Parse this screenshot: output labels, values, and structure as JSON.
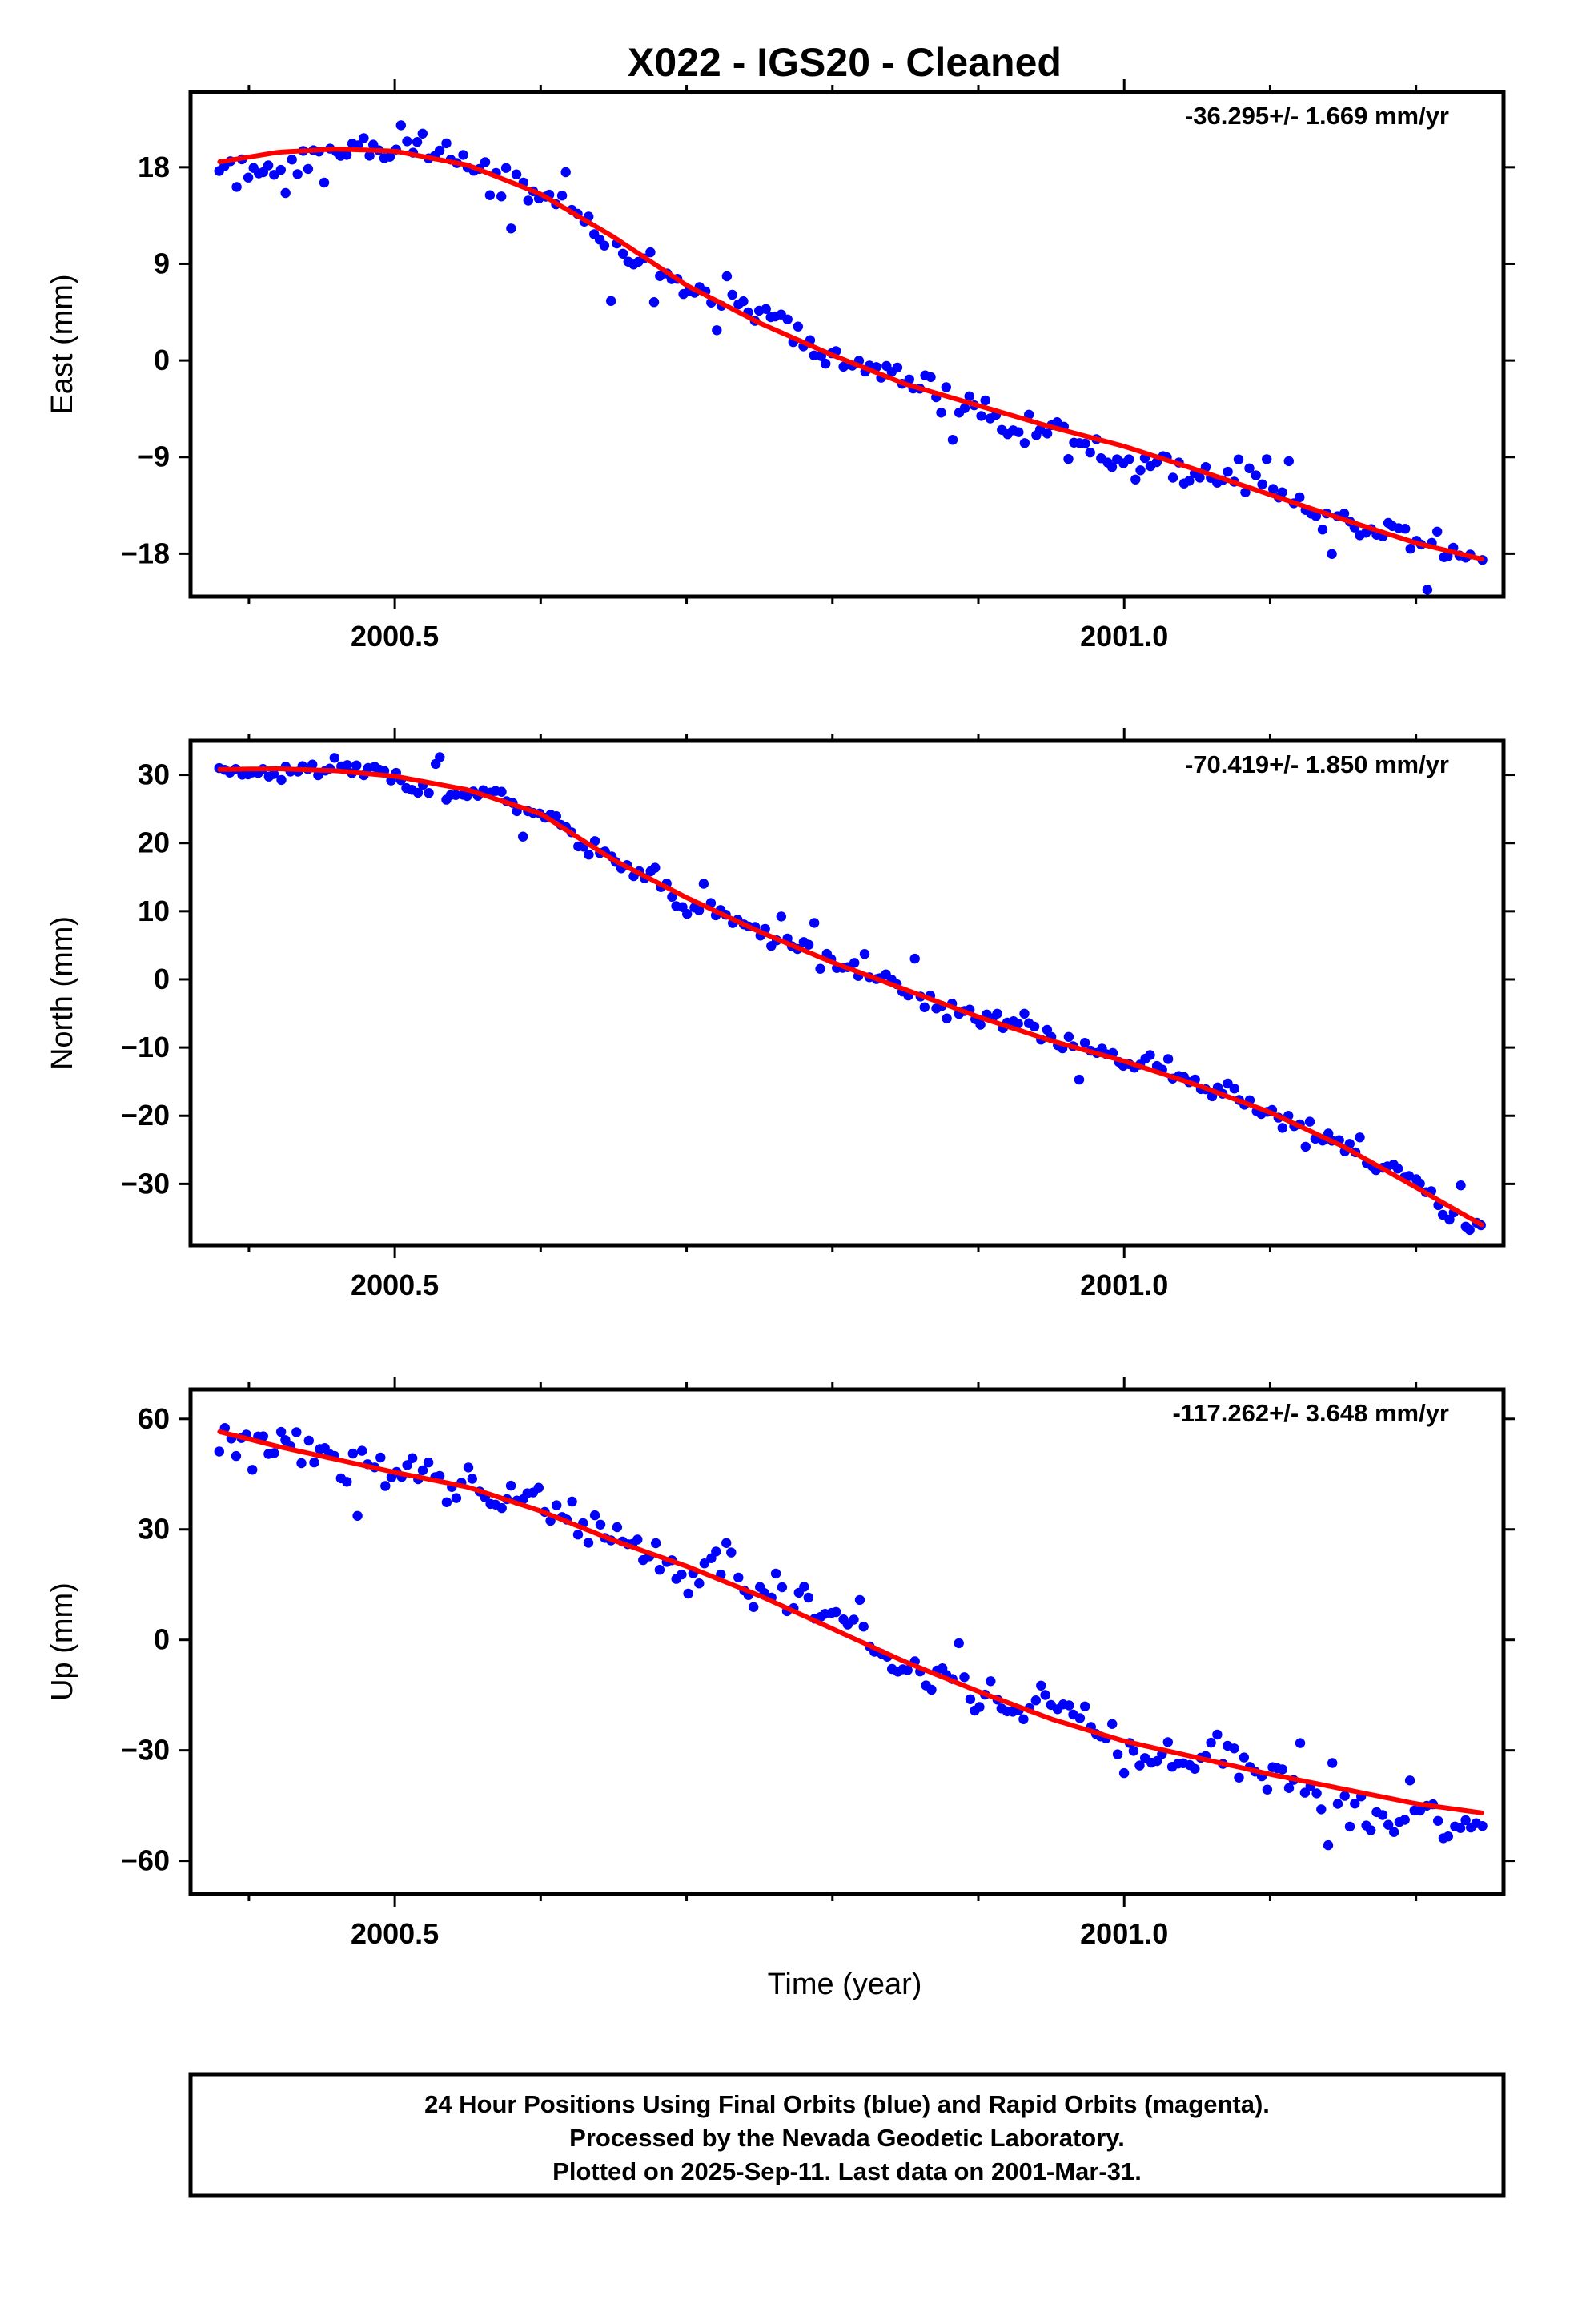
{
  "title": "X022  - IGS20 - Cleaned",
  "xlabel": "Time (year)",
  "footer": {
    "lines": [
      "24 Hour Positions Using Final Orbits (blue) and Rapid Orbits (magenta).",
      "Processed by the Nevada Geodetic Laboratory.",
      "Plotted on 2025-Sep-11. Last data on 2001-Mar-31."
    ]
  },
  "colors": {
    "data": "#0000ff",
    "fit": "#ff0000",
    "frame": "#000000"
  },
  "chart_data": [
    {
      "type": "scatter",
      "ylabel": "East (mm)",
      "rate_label": "-36.295+/- 1.669 mm/yr",
      "xlim": [
        2000.36,
        2001.26
      ],
      "ylim": [
        -22,
        25
      ],
      "x_ticks": [
        2000.5,
        2001.0
      ],
      "x_tick_labels": [
        "2000.5",
        "2001.0"
      ],
      "x_minor_ticks": [
        2000.4,
        2000.6,
        2000.7,
        2000.8,
        2000.9,
        2001.1,
        2001.2
      ],
      "y_ticks": [
        18,
        9,
        0,
        -9,
        -18
      ],
      "y_tick_labels": [
        "18",
        "9",
        "0",
        "−9",
        "−18"
      ],
      "fit": {
        "x": [
          2000.38,
          2000.42,
          2000.46,
          2000.5,
          2000.55,
          2000.6,
          2000.65,
          2000.7,
          2000.75,
          2000.8,
          2000.85,
          2000.9,
          2000.95,
          2001.0,
          2001.05,
          2001.1,
          2001.15,
          2001.2,
          2001.245
        ],
        "y": [
          18.5,
          19.4,
          19.7,
          19.5,
          18.2,
          15.5,
          11.5,
          7.0,
          3.5,
          0.5,
          -2.2,
          -4.2,
          -6.2,
          -8.0,
          -10.2,
          -12.5,
          -14.8,
          -17.0,
          -18.5
        ]
      },
      "seed": 11,
      "points": {
        "n": 230,
        "noise": 1.4,
        "outliers": 12,
        "outlier_mag": 3.2
      }
    },
    {
      "type": "scatter",
      "ylabel": "North (mm)",
      "rate_label": "-70.419+/- 1.850 mm/yr",
      "xlim": [
        2000.36,
        2001.26
      ],
      "ylim": [
        -39,
        35
      ],
      "x_ticks": [
        2000.5,
        2001.0
      ],
      "x_tick_labels": [
        "2000.5",
        "2001.0"
      ],
      "x_minor_ticks": [
        2000.4,
        2000.6,
        2000.7,
        2000.8,
        2000.9,
        2001.1,
        2001.2
      ],
      "y_ticks": [
        30,
        20,
        10,
        0,
        -10,
        -20,
        -30
      ],
      "y_tick_labels": [
        "30",
        "20",
        "10",
        "0",
        "−10",
        "−20",
        "−30"
      ],
      "fit": {
        "x": [
          2000.38,
          2000.42,
          2000.46,
          2000.5,
          2000.55,
          2000.6,
          2000.65,
          2000.7,
          2000.75,
          2000.8,
          2000.85,
          2000.9,
          2000.95,
          2001.0,
          2001.05,
          2001.1,
          2001.15,
          2001.2,
          2001.245
        ],
        "y": [
          30.8,
          30.9,
          30.6,
          29.8,
          27.8,
          24.3,
          17.5,
          12.0,
          7.0,
          2.5,
          -1.5,
          -5.5,
          -9.0,
          -12.0,
          -15.5,
          -19.5,
          -24.5,
          -30.5,
          -36.0
        ]
      },
      "seed": 23,
      "points": {
        "n": 230,
        "noise": 1.3,
        "outliers": 10,
        "outlier_mag": 3.5
      }
    },
    {
      "type": "scatter",
      "ylabel": "Up (mm)",
      "rate_label": "-117.262+/- 3.648 mm/yr",
      "xlim": [
        2000.36,
        2001.26
      ],
      "ylim": [
        -69,
        68
      ],
      "x_ticks": [
        2000.5,
        2001.0
      ],
      "x_tick_labels": [
        "2000.5",
        "2001.0"
      ],
      "x_minor_ticks": [
        2000.4,
        2000.6,
        2000.7,
        2000.8,
        2000.9,
        2001.1,
        2001.2
      ],
      "y_ticks": [
        60,
        30,
        0,
        -30,
        -60
      ],
      "y_tick_labels": [
        "60",
        "30",
        "0",
        "−30",
        "−60"
      ],
      "fit": {
        "x": [
          2000.38,
          2000.42,
          2000.46,
          2000.5,
          2000.55,
          2000.6,
          2000.65,
          2000.7,
          2000.75,
          2000.8,
          2000.85,
          2000.9,
          2000.95,
          2001.0,
          2001.05,
          2001.1,
          2001.15,
          2001.2,
          2001.245
        ],
        "y": [
          56.5,
          52.5,
          49.0,
          45.5,
          41.5,
          35.0,
          27.0,
          20.0,
          12.0,
          3.0,
          -6.0,
          -14.0,
          -21.5,
          -27.5,
          -32.0,
          -36.5,
          -40.5,
          -44.5,
          -47.0
        ]
      },
      "seed": 37,
      "points": {
        "n": 230,
        "noise": 4.8,
        "outliers": 14,
        "outlier_mag": 10.0
      }
    }
  ]
}
